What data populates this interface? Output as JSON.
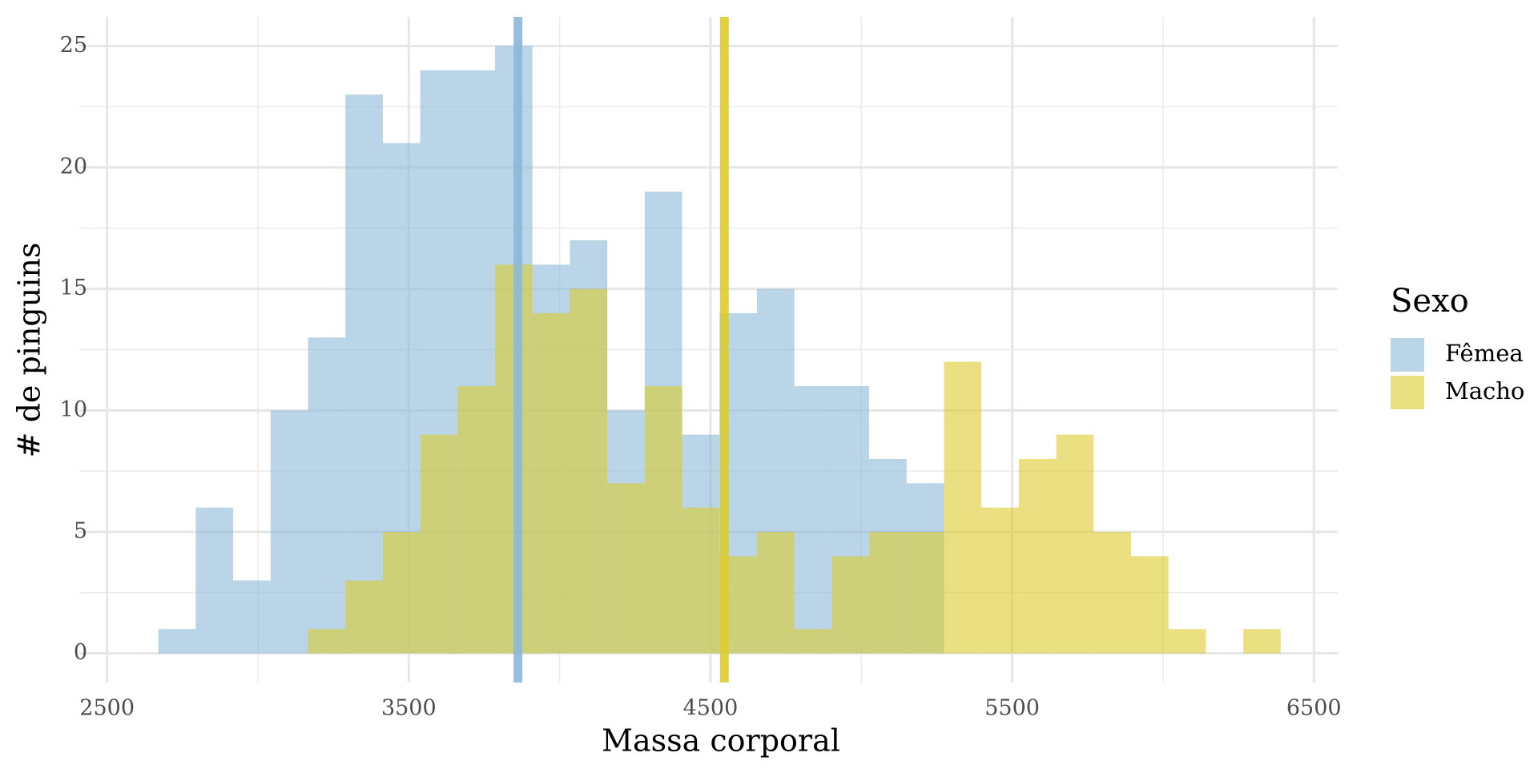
{
  "chart_data": {
    "type": "histogram",
    "xlabel": "Massa corporal",
    "ylabel": "# de pinguins",
    "legend_title": "Sexo",
    "legend": "right",
    "grid": true,
    "bins": [
      2670,
      2794,
      2918,
      3042,
      3166,
      3290,
      3414,
      3538,
      3662,
      3786,
      3910,
      4034,
      4158,
      4282,
      4406,
      4530,
      4654,
      4778,
      4902,
      5026,
      5150,
      5274,
      5398,
      5522,
      5646,
      5770,
      5894,
      6018,
      6142,
      6266,
      6390
    ],
    "series": [
      {
        "name": "Fêmea",
        "color": "#8cb8d8",
        "mean": 3862,
        "values": [
          1,
          6,
          3,
          10,
          13,
          23,
          21,
          24,
          24,
          25,
          16,
          17,
          10,
          19,
          9,
          14,
          15,
          11,
          11,
          8,
          7,
          0,
          0,
          0,
          0,
          0,
          0,
          0,
          0,
          0
        ]
      },
      {
        "name": "Macho",
        "color": "#dccc2e",
        "mean": 4546,
        "values": [
          0,
          0,
          0,
          0,
          1,
          3,
          5,
          9,
          11,
          16,
          14,
          15,
          7,
          11,
          6,
          4,
          5,
          1,
          4,
          5,
          5,
          12,
          6,
          8,
          9,
          5,
          4,
          1,
          0,
          1
        ]
      }
    ],
    "xlim": [
      2408,
      6579
    ],
    "xticks": [
      2500,
      3500,
      4500,
      5500,
      6500
    ],
    "ylim": [
      -1.2,
      26.2
    ],
    "yticks": [
      0,
      5,
      10,
      15,
      20,
      25
    ]
  }
}
